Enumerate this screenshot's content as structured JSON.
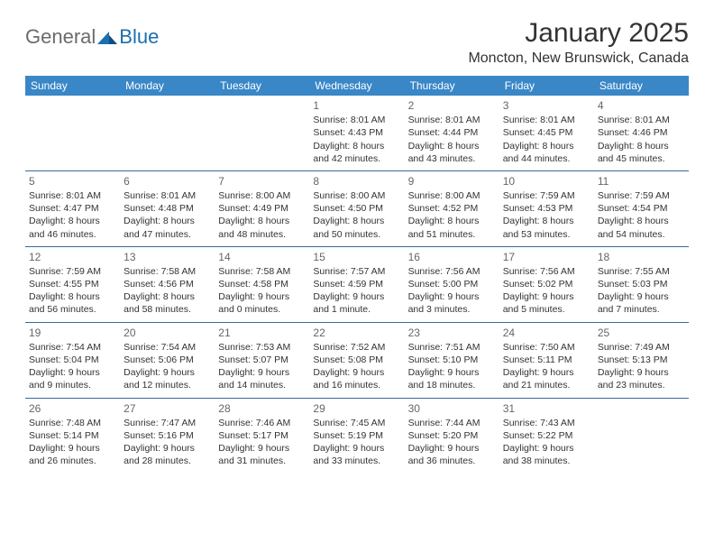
{
  "brand": {
    "general": "General",
    "blue": "Blue"
  },
  "title": "January 2025",
  "subtitle": "Moncton, New Brunswick, Canada",
  "colors": {
    "header_bg": "#3a87c7",
    "header_text": "#ffffff",
    "cell_border": "#3a6a9a",
    "daynum": "#666666",
    "body_text": "#333333",
    "logo_gray": "#6b6b6b",
    "logo_blue": "#1a6fb0",
    "page_bg": "#ffffff"
  },
  "typography": {
    "title_fontsize": 30,
    "subtitle_fontsize": 16,
    "header_fontsize": 12,
    "daynum_fontsize": 12,
    "cell_fontsize": 10.5
  },
  "weekdays": [
    "Sunday",
    "Monday",
    "Tuesday",
    "Wednesday",
    "Thursday",
    "Friday",
    "Saturday"
  ],
  "weeks": [
    [
      null,
      null,
      null,
      {
        "n": "1",
        "sr": "Sunrise: 8:01 AM",
        "ss": "Sunset: 4:43 PM",
        "d1": "Daylight: 8 hours",
        "d2": "and 42 minutes."
      },
      {
        "n": "2",
        "sr": "Sunrise: 8:01 AM",
        "ss": "Sunset: 4:44 PM",
        "d1": "Daylight: 8 hours",
        "d2": "and 43 minutes."
      },
      {
        "n": "3",
        "sr": "Sunrise: 8:01 AM",
        "ss": "Sunset: 4:45 PM",
        "d1": "Daylight: 8 hours",
        "d2": "and 44 minutes."
      },
      {
        "n": "4",
        "sr": "Sunrise: 8:01 AM",
        "ss": "Sunset: 4:46 PM",
        "d1": "Daylight: 8 hours",
        "d2": "and 45 minutes."
      }
    ],
    [
      {
        "n": "5",
        "sr": "Sunrise: 8:01 AM",
        "ss": "Sunset: 4:47 PM",
        "d1": "Daylight: 8 hours",
        "d2": "and 46 minutes."
      },
      {
        "n": "6",
        "sr": "Sunrise: 8:01 AM",
        "ss": "Sunset: 4:48 PM",
        "d1": "Daylight: 8 hours",
        "d2": "and 47 minutes."
      },
      {
        "n": "7",
        "sr": "Sunrise: 8:00 AM",
        "ss": "Sunset: 4:49 PM",
        "d1": "Daylight: 8 hours",
        "d2": "and 48 minutes."
      },
      {
        "n": "8",
        "sr": "Sunrise: 8:00 AM",
        "ss": "Sunset: 4:50 PM",
        "d1": "Daylight: 8 hours",
        "d2": "and 50 minutes."
      },
      {
        "n": "9",
        "sr": "Sunrise: 8:00 AM",
        "ss": "Sunset: 4:52 PM",
        "d1": "Daylight: 8 hours",
        "d2": "and 51 minutes."
      },
      {
        "n": "10",
        "sr": "Sunrise: 7:59 AM",
        "ss": "Sunset: 4:53 PM",
        "d1": "Daylight: 8 hours",
        "d2": "and 53 minutes."
      },
      {
        "n": "11",
        "sr": "Sunrise: 7:59 AM",
        "ss": "Sunset: 4:54 PM",
        "d1": "Daylight: 8 hours",
        "d2": "and 54 minutes."
      }
    ],
    [
      {
        "n": "12",
        "sr": "Sunrise: 7:59 AM",
        "ss": "Sunset: 4:55 PM",
        "d1": "Daylight: 8 hours",
        "d2": "and 56 minutes."
      },
      {
        "n": "13",
        "sr": "Sunrise: 7:58 AM",
        "ss": "Sunset: 4:56 PM",
        "d1": "Daylight: 8 hours",
        "d2": "and 58 minutes."
      },
      {
        "n": "14",
        "sr": "Sunrise: 7:58 AM",
        "ss": "Sunset: 4:58 PM",
        "d1": "Daylight: 9 hours",
        "d2": "and 0 minutes."
      },
      {
        "n": "15",
        "sr": "Sunrise: 7:57 AM",
        "ss": "Sunset: 4:59 PM",
        "d1": "Daylight: 9 hours",
        "d2": "and 1 minute."
      },
      {
        "n": "16",
        "sr": "Sunrise: 7:56 AM",
        "ss": "Sunset: 5:00 PM",
        "d1": "Daylight: 9 hours",
        "d2": "and 3 minutes."
      },
      {
        "n": "17",
        "sr": "Sunrise: 7:56 AM",
        "ss": "Sunset: 5:02 PM",
        "d1": "Daylight: 9 hours",
        "d2": "and 5 minutes."
      },
      {
        "n": "18",
        "sr": "Sunrise: 7:55 AM",
        "ss": "Sunset: 5:03 PM",
        "d1": "Daylight: 9 hours",
        "d2": "and 7 minutes."
      }
    ],
    [
      {
        "n": "19",
        "sr": "Sunrise: 7:54 AM",
        "ss": "Sunset: 5:04 PM",
        "d1": "Daylight: 9 hours",
        "d2": "and 9 minutes."
      },
      {
        "n": "20",
        "sr": "Sunrise: 7:54 AM",
        "ss": "Sunset: 5:06 PM",
        "d1": "Daylight: 9 hours",
        "d2": "and 12 minutes."
      },
      {
        "n": "21",
        "sr": "Sunrise: 7:53 AM",
        "ss": "Sunset: 5:07 PM",
        "d1": "Daylight: 9 hours",
        "d2": "and 14 minutes."
      },
      {
        "n": "22",
        "sr": "Sunrise: 7:52 AM",
        "ss": "Sunset: 5:08 PM",
        "d1": "Daylight: 9 hours",
        "d2": "and 16 minutes."
      },
      {
        "n": "23",
        "sr": "Sunrise: 7:51 AM",
        "ss": "Sunset: 5:10 PM",
        "d1": "Daylight: 9 hours",
        "d2": "and 18 minutes."
      },
      {
        "n": "24",
        "sr": "Sunrise: 7:50 AM",
        "ss": "Sunset: 5:11 PM",
        "d1": "Daylight: 9 hours",
        "d2": "and 21 minutes."
      },
      {
        "n": "25",
        "sr": "Sunrise: 7:49 AM",
        "ss": "Sunset: 5:13 PM",
        "d1": "Daylight: 9 hours",
        "d2": "and 23 minutes."
      }
    ],
    [
      {
        "n": "26",
        "sr": "Sunrise: 7:48 AM",
        "ss": "Sunset: 5:14 PM",
        "d1": "Daylight: 9 hours",
        "d2": "and 26 minutes."
      },
      {
        "n": "27",
        "sr": "Sunrise: 7:47 AM",
        "ss": "Sunset: 5:16 PM",
        "d1": "Daylight: 9 hours",
        "d2": "and 28 minutes."
      },
      {
        "n": "28",
        "sr": "Sunrise: 7:46 AM",
        "ss": "Sunset: 5:17 PM",
        "d1": "Daylight: 9 hours",
        "d2": "and 31 minutes."
      },
      {
        "n": "29",
        "sr": "Sunrise: 7:45 AM",
        "ss": "Sunset: 5:19 PM",
        "d1": "Daylight: 9 hours",
        "d2": "and 33 minutes."
      },
      {
        "n": "30",
        "sr": "Sunrise: 7:44 AM",
        "ss": "Sunset: 5:20 PM",
        "d1": "Daylight: 9 hours",
        "d2": "and 36 minutes."
      },
      {
        "n": "31",
        "sr": "Sunrise: 7:43 AM",
        "ss": "Sunset: 5:22 PM",
        "d1": "Daylight: 9 hours",
        "d2": "and 38 minutes."
      },
      null
    ]
  ]
}
